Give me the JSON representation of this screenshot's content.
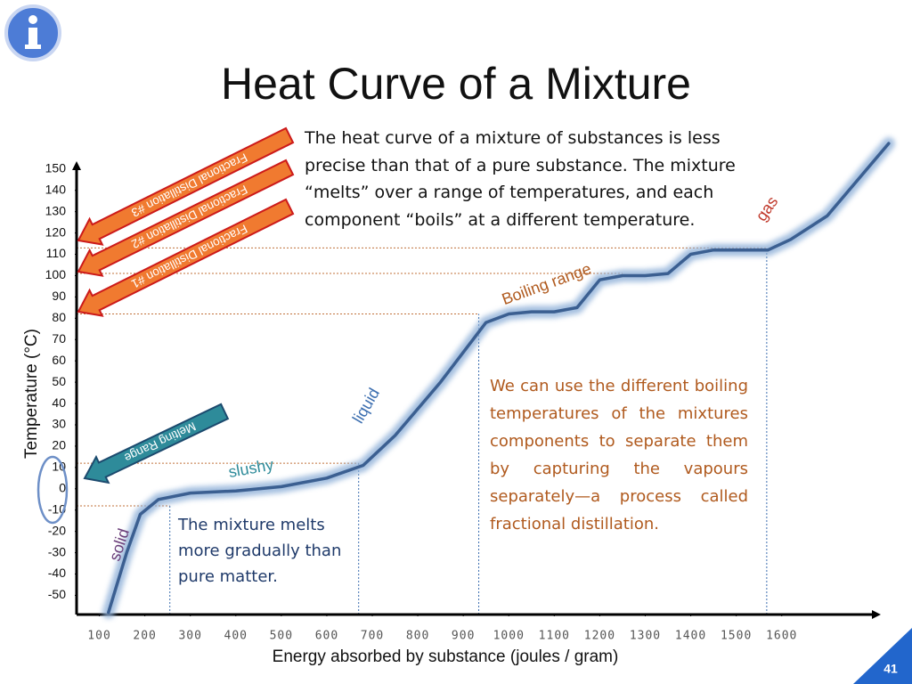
{
  "chart_data": {
    "type": "line",
    "title": "Heat Curve of a Mixture",
    "xlabel": "Energy absorbed by substance (joules / gram)",
    "ylabel": "Temperature (°C)",
    "xlim": [
      50,
      1810
    ],
    "ylim": [
      -59,
      152
    ],
    "xticks": [
      100,
      200,
      300,
      400,
      500,
      600,
      700,
      800,
      900,
      1000,
      1100,
      1200,
      1300,
      1400,
      1500,
      1600
    ],
    "yticks": [
      150,
      140,
      130,
      120,
      110,
      100,
      90,
      80,
      70,
      60,
      50,
      40,
      30,
      20,
      10,
      0,
      -10,
      -20,
      -30,
      -40,
      -50
    ],
    "series": [
      {
        "color": "#3b5f91",
        "x": [
          120,
          160,
          190,
          230,
          300,
          400,
          500,
          600,
          680,
          750,
          850,
          950,
          1000,
          1050,
          1100,
          1150,
          1200,
          1250,
          1300,
          1350,
          1400,
          1450,
          1500,
          1570,
          1620,
          1700,
          1835
        ],
        "values": [
          -58,
          -30,
          -12,
          -5,
          -2,
          -1,
          1,
          5,
          11,
          25,
          50,
          78,
          82,
          83,
          83,
          85,
          98,
          100,
          100,
          101,
          110,
          112,
          112,
          112,
          117,
          128,
          162
        ]
      }
    ],
    "guides": [
      {
        "x": 255,
        "y": -8
      },
      {
        "x": 670,
        "y": 12
      },
      {
        "x": 934,
        "y": 82
      },
      {
        "x": 1567,
        "y": 113
      }
    ],
    "hguides": [
      101
    ],
    "annotations": [
      {
        "text": "solid",
        "color": "#6b3f7a"
      },
      {
        "text": "slushy",
        "color": "#2e8b9a"
      },
      {
        "text": "liquid",
        "color": "#3d6fb0"
      },
      {
        "text": "Boiling range",
        "color": "#b05a1e"
      },
      {
        "text": "gas",
        "color": "#c0392b"
      }
    ],
    "arrows": [
      "Fractional Distillation #3",
      "Fractional Distillation #2",
      "Fractional Distillation #1",
      "Melting  Range"
    ],
    "notes": [
      "The heat curve of a mixture of substances is less precise than that of a pure substance.  The mixture “melts” over a range of temperatures, and each component “boils” at a different temperature.",
      "We can use the different boiling temperatures of the mixtures components to separate them by capturing the vapours separately—a process called fractional distillation.",
      "The mixture melts more gradually than pure matter."
    ],
    "page_number": "41"
  }
}
